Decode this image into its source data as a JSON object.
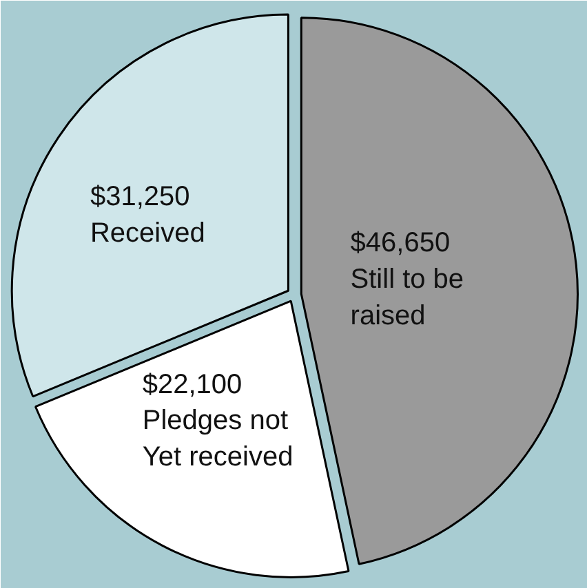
{
  "chart_data": {
    "type": "pie",
    "categories": [
      "Still to be raised",
      "Pledges not Yet received",
      "Received"
    ],
    "values": [
      46650,
      22100,
      31250
    ],
    "colors": [
      "#9a9a9a",
      "#ffffff",
      "#cfe6ea"
    ],
    "value_labels": [
      "$46,650",
      "$22,100",
      "$31,250"
    ]
  }
}
